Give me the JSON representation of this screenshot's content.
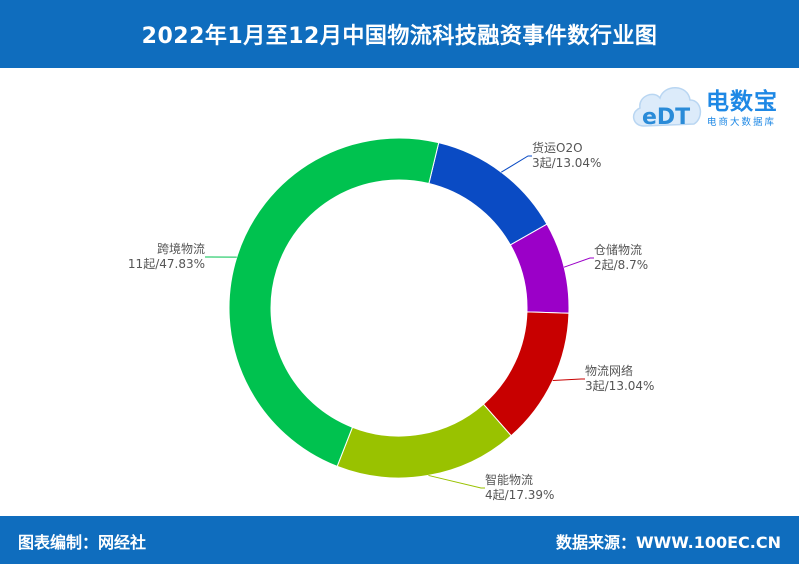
{
  "header": {
    "title": "2022年1月至12月中国物流科技融资事件数行业图"
  },
  "footer": {
    "left": "图表编制：网经社",
    "right": "数据来源：WWW.100EC.CN"
  },
  "logo": {
    "brand": "电数宝",
    "sub": "电商大数据库",
    "mark": "eDT"
  },
  "chart_data": {
    "type": "pie",
    "donut": true,
    "title": "2022年1月至12月中国物流科技融资事件数行业图",
    "categories": [
      "货运O2O",
      "仓储物流",
      "物流网络",
      "智能物流",
      "跨境物流"
    ],
    "values": [
      3,
      2,
      3,
      4,
      11
    ],
    "percent_labels": [
      "3起/13.04%",
      "2起/8.7%",
      "3起/13.04%",
      "4起/17.39%",
      "11起/47.83%"
    ],
    "colors": [
      "#0A4BC4",
      "#9B00C8",
      "#C80000",
      "#99C200",
      "#00C24F"
    ],
    "start_angle_deg": 13.5,
    "direction": "clockwise"
  }
}
